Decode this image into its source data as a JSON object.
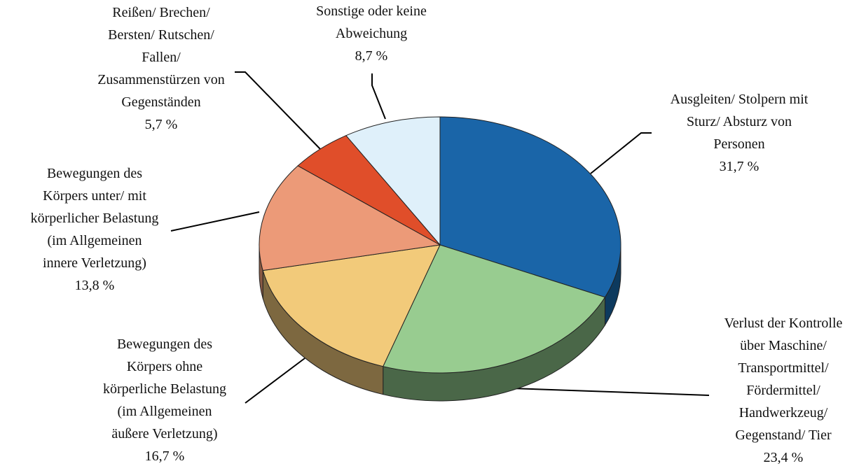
{
  "chart_data": {
    "type": "pie",
    "categories": [
      "Ausgleiten/ Stolpern mit\nSturz/ Absturz von\nPersonen",
      "Verlust der Kontrolle\nüber Maschine/\nTransportmittel/\nFördermittel/\nHandwerkzeug/\nGegenstand/ Tier",
      "Bewegungen des\nKörpers ohne\nkörperliche Belastung\n(im Allgemeinen\näußere Verletzung)",
      "Bewegungen des\nKörpers unter/ mit\nkörperlicher Belastung\n(im Allgemeinen\ninnere Verletzung)",
      "Reißen/ Brechen/\nBersten/ Rutschen/\nFallen/\nZusammenstürzen von\nGegenständen",
      "Sonstige oder keine\nAbweichung"
    ],
    "values": [
      31.7,
      23.4,
      16.7,
      13.8,
      5.7,
      8.7
    ],
    "value_labels": [
      "31,7 %",
      "23,4 %",
      "16,7 %",
      "13,8 %",
      "5,7 %",
      "8,7 %"
    ],
    "colors": [
      "#1a65a8",
      "#98cc90",
      "#f2ca7a",
      "#ec9a78",
      "#e04e2a",
      "#dff0fa"
    ]
  }
}
